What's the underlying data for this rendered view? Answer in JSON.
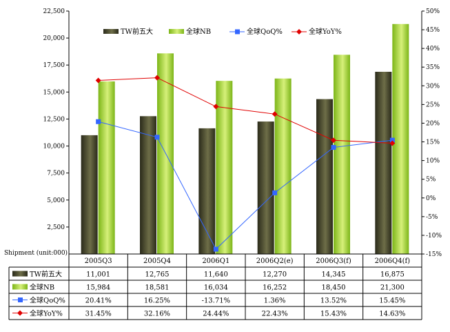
{
  "chart_data": {
    "type": "bar",
    "categories": [
      "2005Q3",
      "2005Q4",
      "2006Q1",
      "2006Q2(e)",
      "2006Q3(f)",
      "2006Q4(f)"
    ],
    "series": [
      {
        "name": "TW前五大",
        "kind": "bar",
        "axis": "left",
        "color": "#4a4a2e",
        "values": [
          11001,
          12765,
          11640,
          12270,
          14345,
          16875
        ],
        "labels": [
          "11,001",
          "12,765",
          "11,640",
          "12,270",
          "14,345",
          "16,875"
        ]
      },
      {
        "name": "全球NB",
        "kind": "bar",
        "axis": "left",
        "color": "#9acd32",
        "values": [
          15984,
          18581,
          16034,
          16252,
          18450,
          21300
        ],
        "labels": [
          "15,984",
          "18,581",
          "16,034",
          "16,252",
          "18,450",
          "21,300"
        ]
      },
      {
        "name": "全球QoQ%",
        "kind": "line",
        "axis": "right",
        "color": "#3366ff",
        "marker": "square",
        "values": [
          20.41,
          16.25,
          -13.71,
          1.36,
          13.52,
          15.45
        ],
        "labels": [
          "20.41%",
          "16.25%",
          "-13.71%",
          "1.36%",
          "13.52%",
          "15.45%"
        ]
      },
      {
        "name": "全球YoY%",
        "kind": "line",
        "axis": "right",
        "color": "#e00000",
        "marker": "diamond",
        "values": [
          31.45,
          32.16,
          24.44,
          22.43,
          15.43,
          14.63
        ],
        "labels": [
          "31.45%",
          "32.16%",
          "24.44%",
          "22.43%",
          "15.43%",
          "14.63%"
        ]
      }
    ],
    "y_left": {
      "range": [
        0,
        22500
      ],
      "ticks": [
        "2,500",
        "5,000",
        "7,500",
        "10,000",
        "12,500",
        "15,000",
        "17,500",
        "20,000",
        "22,500"
      ],
      "label": "Shipment (unit:000)"
    },
    "y_right": {
      "range": [
        -15,
        50
      ],
      "ticks": [
        "-15%",
        "-10%",
        "-5%",
        "0%",
        "5%",
        "10%",
        "15%",
        "20%",
        "25%",
        "30%",
        "35%",
        "40%",
        "45%",
        "50%"
      ]
    },
    "grid": false,
    "legend_position": "top",
    "data_table": true
  }
}
